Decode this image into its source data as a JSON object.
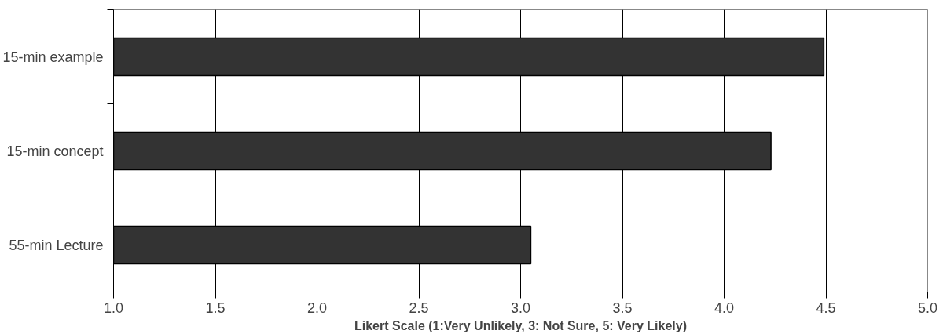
{
  "chart_data": {
    "type": "bar",
    "orientation": "horizontal",
    "categories": [
      "15-min example",
      "15-min concept",
      "55-min Lecture"
    ],
    "values": [
      4.49,
      4.23,
      3.05
    ],
    "color": "#333333",
    "xlabel": "Likert Scale (1:Very Unlikely, 3: Not Sure, 5: Very Likely)",
    "xlim": [
      1.0,
      5.0
    ],
    "xticks": [
      {
        "value": 1.0,
        "label": "1.0"
      },
      {
        "value": 1.5,
        "label": "1.5"
      },
      {
        "value": 2.0,
        "label": "2.0"
      },
      {
        "value": 2.5,
        "label": "2.5"
      },
      {
        "value": 3.0,
        "label": "3.0"
      },
      {
        "value": 3.5,
        "label": "3.5"
      },
      {
        "value": 4.0,
        "label": "4.0"
      },
      {
        "value": 4.5,
        "label": "4.5"
      },
      {
        "value": 5.0,
        "label": "5.0"
      }
    ],
    "grid": "x"
  }
}
